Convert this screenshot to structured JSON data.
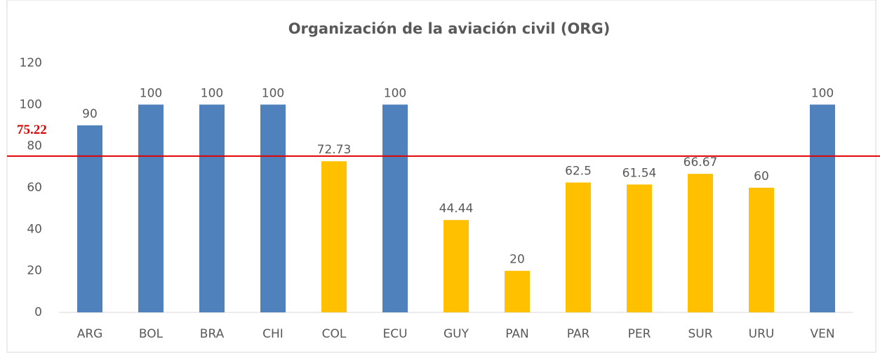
{
  "chart_data": {
    "type": "bar",
    "title": "Organización de la aviación civil (ORG)",
    "categories": [
      "ARG",
      "BOL",
      "BRA",
      "CHI",
      "COL",
      "ECU",
      "GUY",
      "PAN",
      "PAR",
      "PER",
      "SUR",
      "URU",
      "VEN"
    ],
    "values": [
      90,
      100,
      100,
      100,
      72.73,
      100,
      44.44,
      20,
      62.5,
      61.54,
      66.67,
      60,
      100
    ],
    "colors": [
      "#4f81bd",
      "#4f81bd",
      "#4f81bd",
      "#4f81bd",
      "#ffc000",
      "#4f81bd",
      "#ffc000",
      "#ffc000",
      "#ffc000",
      "#ffc000",
      "#ffc000",
      "#ffc000",
      "#4f81bd"
    ],
    "ylim": [
      0,
      120
    ],
    "yticks": [
      0,
      20,
      40,
      60,
      80,
      100,
      120
    ],
    "grid": false,
    "reference_line": {
      "value": 75.22,
      "color": "#e00000"
    }
  }
}
